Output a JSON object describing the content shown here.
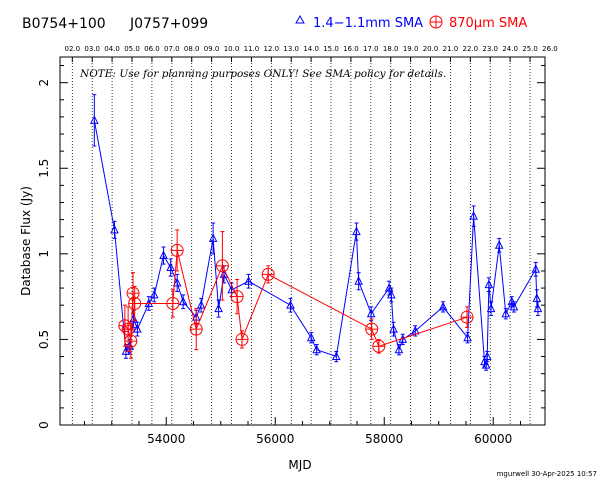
{
  "title": {
    "source1": "B0754+100",
    "source2": "J0757+099",
    "legend_blue": "1.4−1.1mm SMA",
    "legend_red": "870μm SMA"
  },
  "note": "NOTE: Use for planning purposes ONLY! See SMA policy for details.",
  "footer": "mgurwell 30-Apr-2025 10:57",
  "colors": {
    "blue": "#0000ff",
    "red": "#ff0000",
    "axis": "#000000"
  },
  "chart_data": {
    "type": "scatter",
    "xlabel": "MJD",
    "ylabel": "Database Flux (Jy)",
    "xlim": [
      52050,
      60950
    ],
    "ylim": [
      0,
      2.15
    ],
    "x_ticks": [
      54000,
      56000,
      58000,
      60000
    ],
    "y_ticks": [
      0,
      0.5,
      1,
      1.5,
      2
    ],
    "y_tick_labels": [
      "0",
      "0.5",
      "1",
      "1.5",
      "2"
    ],
    "top_axis_labels": [
      "02.0",
      "03.0",
      "04.0",
      "05.0",
      "06.0",
      "07.0",
      "08.0",
      "09.0",
      "10.0",
      "11.0",
      "12.0",
      "13.0",
      "14.0",
      "15.0",
      "16.0",
      "17.0",
      "18.0",
      "19.0",
      "20.0",
      "21.0",
      "22.0",
      "23.0",
      "24.0",
      "25.0",
      "26.0"
    ],
    "top_axis_mjd": [
      52276,
      52641,
      53006,
      53371,
      53737,
      54102,
      54467,
      54832,
      55197,
      55563,
      55928,
      56293,
      56658,
      57023,
      57388,
      57754,
      58119,
      58484,
      58849,
      59215,
      59580,
      59945,
      60310,
      60676,
      61041
    ],
    "series": [
      {
        "name": "1.4−1.1mm SMA",
        "color": "#0000ff",
        "marker": "triangle",
        "points": [
          [
            52680,
            1.78,
            0.15
          ],
          [
            53050,
            1.14,
            0.05
          ],
          [
            53260,
            0.43,
            0.04
          ],
          [
            53330,
            0.46,
            0.04
          ],
          [
            53400,
            0.62,
            0.05
          ],
          [
            53470,
            0.56,
            0.04
          ],
          [
            53680,
            0.71,
            0.04
          ],
          [
            53780,
            0.76,
            0.04
          ],
          [
            53950,
            0.99,
            0.05
          ],
          [
            54080,
            0.92,
            0.05
          ],
          [
            54200,
            0.83,
            0.05
          ],
          [
            54310,
            0.72,
            0.04
          ],
          [
            54550,
            0.63,
            0.04
          ],
          [
            54640,
            0.7,
            0.04
          ],
          [
            54860,
            1.09,
            0.09
          ],
          [
            54960,
            0.68,
            0.05
          ],
          [
            55060,
            0.88,
            0.05
          ],
          [
            55200,
            0.79,
            0.04
          ],
          [
            55510,
            0.84,
            0.04
          ],
          [
            56280,
            0.7,
            0.04
          ],
          [
            56660,
            0.51,
            0.03
          ],
          [
            56760,
            0.44,
            0.03
          ],
          [
            57120,
            0.4,
            0.03
          ],
          [
            57490,
            1.13,
            0.05
          ],
          [
            57530,
            0.84,
            0.05
          ],
          [
            57760,
            0.65,
            0.04
          ],
          [
            58090,
            0.8,
            0.04
          ],
          [
            58130,
            0.76,
            0.04
          ],
          [
            58170,
            0.56,
            0.04
          ],
          [
            58270,
            0.44,
            0.03
          ],
          [
            58340,
            0.5,
            0.03
          ],
          [
            58570,
            0.55,
            0.03
          ],
          [
            59080,
            0.69,
            0.03
          ],
          [
            59530,
            0.51,
            0.03
          ],
          [
            59640,
            1.22,
            0.06
          ],
          [
            59840,
            0.37,
            0.03
          ],
          [
            59870,
            0.35,
            0.03
          ],
          [
            59890,
            0.4,
            0.03
          ],
          [
            59920,
            0.82,
            0.04
          ],
          [
            59960,
            0.68,
            0.04
          ],
          [
            60110,
            1.05,
            0.04
          ],
          [
            60230,
            0.65,
            0.03
          ],
          [
            60340,
            0.72,
            0.03
          ],
          [
            60380,
            0.69,
            0.03
          ],
          [
            60780,
            0.91,
            0.04
          ],
          [
            60800,
            0.74,
            0.05
          ],
          [
            60820,
            0.68,
            0.04
          ]
        ]
      },
      {
        "name": "870μm SMA",
        "color": "#ff0000",
        "marker": "circle-plus",
        "points": [
          [
            53240,
            0.58,
            0.12
          ],
          [
            53300,
            0.56,
            0.13
          ],
          [
            53350,
            0.49,
            0.1
          ],
          [
            53390,
            0.77,
            0.12
          ],
          [
            53420,
            0.71,
            0.1
          ],
          [
            54120,
            0.71,
            0.08
          ],
          [
            54200,
            1.02,
            0.12
          ],
          [
            54550,
            0.56,
            0.12
          ],
          [
            55030,
            0.93,
            0.2
          ],
          [
            55300,
            0.75,
            0.1
          ],
          [
            55390,
            0.5,
            0.05
          ],
          [
            55870,
            0.88,
            0.05
          ],
          [
            57770,
            0.56,
            0.06
          ],
          [
            57900,
            0.46,
            0.04
          ],
          [
            59520,
            0.63,
            0.06
          ]
        ]
      }
    ]
  }
}
